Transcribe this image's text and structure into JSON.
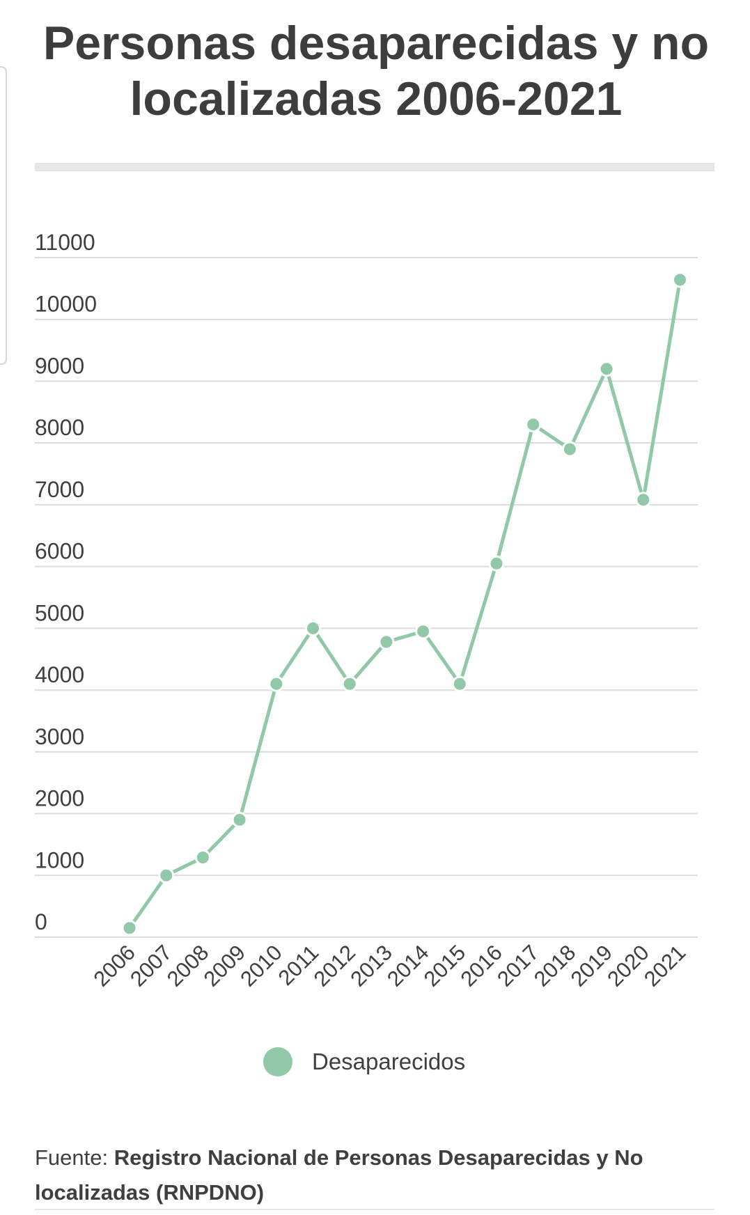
{
  "title": "Personas desaparecidas y no localizadas 2006-2021",
  "colors": {
    "series": "#91c8a7",
    "gridline": "#dcdcdc",
    "text": "#3f3f3f"
  },
  "legend": {
    "label": "Desaparecidos"
  },
  "source": {
    "prefix": "Fuente:",
    "text": "Registro Nacional de Personas Desaparecidas y No localizadas (RNPDNO)"
  },
  "chart_data": {
    "type": "line",
    "title": "Personas desaparecidas y no localizadas 2006-2021",
    "xlabel": "",
    "ylabel": "",
    "categories": [
      "2006",
      "2007",
      "2008",
      "2009",
      "2010",
      "2011",
      "2012",
      "2013",
      "2014",
      "2015",
      "2016",
      "2017",
      "2018",
      "2019",
      "2020",
      "2021"
    ],
    "yticks": [
      "0",
      "1000",
      "2000",
      "3000",
      "4000",
      "5000",
      "6000",
      "7000",
      "8000",
      "9000",
      "10000",
      "11000"
    ],
    "ylim": [
      0,
      11000
    ],
    "grid": true,
    "legend_position": "bottom-center",
    "series": [
      {
        "name": "Desaparecidos",
        "values": [
          150,
          1000,
          1290,
          1900,
          4100,
          5000,
          4100,
          4780,
          4950,
          4100,
          6050,
          8300,
          7900,
          9200,
          7080,
          10640
        ]
      }
    ]
  }
}
